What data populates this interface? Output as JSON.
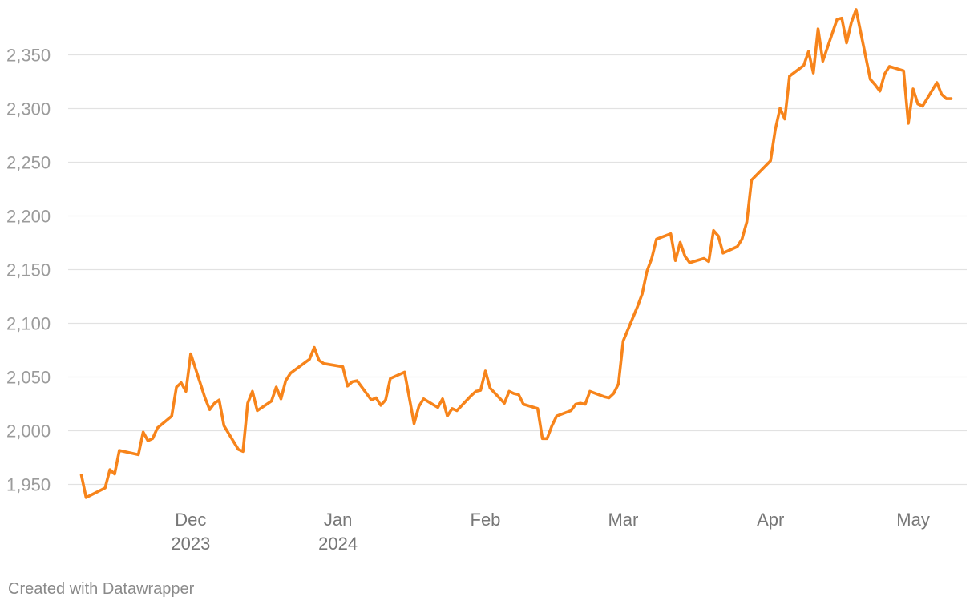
{
  "chart_data": {
    "type": "line",
    "title": "",
    "xlabel": "",
    "ylabel": "",
    "ylim": [
      1925,
      2395
    ],
    "xlim": [
      "2023-11-06",
      "2024-05-12"
    ],
    "grid": "horizontal",
    "color": "#f7841b",
    "y_ticks": [
      {
        "value": 1950,
        "label": "1,950"
      },
      {
        "value": 2000,
        "label": "2,000"
      },
      {
        "value": 2050,
        "label": "2,050"
      },
      {
        "value": 2100,
        "label": "2,100"
      },
      {
        "value": 2150,
        "label": "2,150"
      },
      {
        "value": 2200,
        "label": "2,200"
      },
      {
        "value": 2250,
        "label": "2,250"
      },
      {
        "value": 2300,
        "label": "2,300"
      },
      {
        "value": 2350,
        "label": "2,350"
      }
    ],
    "x_ticks": [
      {
        "date": "2023-12-01",
        "label": "Dec",
        "sublabel": "2023"
      },
      {
        "date": "2024-01-01",
        "label": "Jan",
        "sublabel": "2024"
      },
      {
        "date": "2024-02-01",
        "label": "Feb",
        "sublabel": ""
      },
      {
        "date": "2024-03-01",
        "label": "Mar",
        "sublabel": ""
      },
      {
        "date": "2024-04-01",
        "label": "Apr",
        "sublabel": ""
      },
      {
        "date": "2024-05-01",
        "label": "May",
        "sublabel": ""
      }
    ],
    "series": [
      {
        "points": [
          [
            "2023-11-08",
            1958
          ],
          [
            "2023-11-09",
            1937
          ],
          [
            "2023-11-13",
            1946
          ],
          [
            "2023-11-14",
            1963
          ],
          [
            "2023-11-15",
            1959
          ],
          [
            "2023-11-16",
            1981
          ],
          [
            "2023-11-20",
            1977
          ],
          [
            "2023-11-21",
            1998
          ],
          [
            "2023-11-22",
            1990
          ],
          [
            "2023-11-23",
            1992
          ],
          [
            "2023-11-24",
            2002
          ],
          [
            "2023-11-27",
            2013
          ],
          [
            "2023-11-28",
            2040
          ],
          [
            "2023-11-29",
            2044
          ],
          [
            "2023-11-30",
            2036
          ],
          [
            "2023-12-01",
            2071
          ],
          [
            "2023-12-04",
            2030
          ],
          [
            "2023-12-05",
            2019
          ],
          [
            "2023-12-06",
            2025
          ],
          [
            "2023-12-07",
            2028
          ],
          [
            "2023-12-08",
            2004
          ],
          [
            "2023-12-11",
            1982
          ],
          [
            "2023-12-12",
            1980
          ],
          [
            "2023-12-13",
            2025
          ],
          [
            "2023-12-14",
            2036
          ],
          [
            "2023-12-15",
            2018
          ],
          [
            "2023-12-18",
            2027
          ],
          [
            "2023-12-19",
            2040
          ],
          [
            "2023-12-20",
            2029
          ],
          [
            "2023-12-21",
            2046
          ],
          [
            "2023-12-22",
            2053
          ],
          [
            "2023-12-26",
            2066
          ],
          [
            "2023-12-27",
            2077
          ],
          [
            "2023-12-28",
            2065
          ],
          [
            "2023-12-29",
            2062
          ],
          [
            "2024-01-02",
            2059
          ],
          [
            "2024-01-03",
            2041
          ],
          [
            "2024-01-04",
            2045
          ],
          [
            "2024-01-05",
            2046
          ],
          [
            "2024-01-08",
            2028
          ],
          [
            "2024-01-09",
            2030
          ],
          [
            "2024-01-10",
            2023
          ],
          [
            "2024-01-11",
            2028
          ],
          [
            "2024-01-12",
            2048
          ],
          [
            "2024-01-15",
            2054
          ],
          [
            "2024-01-17",
            2006
          ],
          [
            "2024-01-18",
            2022
          ],
          [
            "2024-01-19",
            2029
          ],
          [
            "2024-01-22",
            2021
          ],
          [
            "2024-01-23",
            2029
          ],
          [
            "2024-01-24",
            2013
          ],
          [
            "2024-01-25",
            2020
          ],
          [
            "2024-01-26",
            2018
          ],
          [
            "2024-01-29",
            2032
          ],
          [
            "2024-01-30",
            2036
          ],
          [
            "2024-01-31",
            2037
          ],
          [
            "2024-02-01",
            2055
          ],
          [
            "2024-02-02",
            2039
          ],
          [
            "2024-02-05",
            2025
          ],
          [
            "2024-02-06",
            2036
          ],
          [
            "2024-02-07",
            2034
          ],
          [
            "2024-02-08",
            2033
          ],
          [
            "2024-02-09",
            2024
          ],
          [
            "2024-02-12",
            2020
          ],
          [
            "2024-02-13",
            1992
          ],
          [
            "2024-02-14",
            1992
          ],
          [
            "2024-02-15",
            2004
          ],
          [
            "2024-02-16",
            2013
          ],
          [
            "2024-02-19",
            2018
          ],
          [
            "2024-02-20",
            2024
          ],
          [
            "2024-02-21",
            2025
          ],
          [
            "2024-02-22",
            2024
          ],
          [
            "2024-02-23",
            2036
          ],
          [
            "2024-02-26",
            2031
          ],
          [
            "2024-02-27",
            2030
          ],
          [
            "2024-02-28",
            2034
          ],
          [
            "2024-02-29",
            2043
          ],
          [
            "2024-03-01",
            2083
          ],
          [
            "2024-03-04",
            2115
          ],
          [
            "2024-03-05",
            2127
          ],
          [
            "2024-03-06",
            2148
          ],
          [
            "2024-03-07",
            2160
          ],
          [
            "2024-03-08",
            2178
          ],
          [
            "2024-03-11",
            2183
          ],
          [
            "2024-03-12",
            2158
          ],
          [
            "2024-03-13",
            2175
          ],
          [
            "2024-03-14",
            2162
          ],
          [
            "2024-03-15",
            2156
          ],
          [
            "2024-03-18",
            2160
          ],
          [
            "2024-03-19",
            2157
          ],
          [
            "2024-03-20",
            2186
          ],
          [
            "2024-03-21",
            2181
          ],
          [
            "2024-03-22",
            2165
          ],
          [
            "2024-03-25",
            2171
          ],
          [
            "2024-03-26",
            2178
          ],
          [
            "2024-03-27",
            2194
          ],
          [
            "2024-03-28",
            2233
          ],
          [
            "2024-04-01",
            2251
          ],
          [
            "2024-04-02",
            2280
          ],
          [
            "2024-04-03",
            2300
          ],
          [
            "2024-04-04",
            2290
          ],
          [
            "2024-04-05",
            2330
          ],
          [
            "2024-04-08",
            2340
          ],
          [
            "2024-04-09",
            2353
          ],
          [
            "2024-04-10",
            2333
          ],
          [
            "2024-04-11",
            2374
          ],
          [
            "2024-04-12",
            2344
          ],
          [
            "2024-04-15",
            2383
          ],
          [
            "2024-04-16",
            2384
          ],
          [
            "2024-04-17",
            2361
          ],
          [
            "2024-04-18",
            2380
          ],
          [
            "2024-04-19",
            2392
          ],
          [
            "2024-04-22",
            2327
          ],
          [
            "2024-04-23",
            2322
          ],
          [
            "2024-04-24",
            2316
          ],
          [
            "2024-04-25",
            2332
          ],
          [
            "2024-04-26",
            2339
          ],
          [
            "2024-04-29",
            2335
          ],
          [
            "2024-04-30",
            2286
          ],
          [
            "2024-05-01",
            2318
          ],
          [
            "2024-05-02",
            2304
          ],
          [
            "2024-05-03",
            2302
          ],
          [
            "2024-05-06",
            2324
          ],
          [
            "2024-05-07",
            2313
          ],
          [
            "2024-05-08",
            2309
          ],
          [
            "2024-05-09",
            2309
          ]
        ]
      }
    ]
  },
  "footer": {
    "credit": "Created with Datawrapper"
  }
}
